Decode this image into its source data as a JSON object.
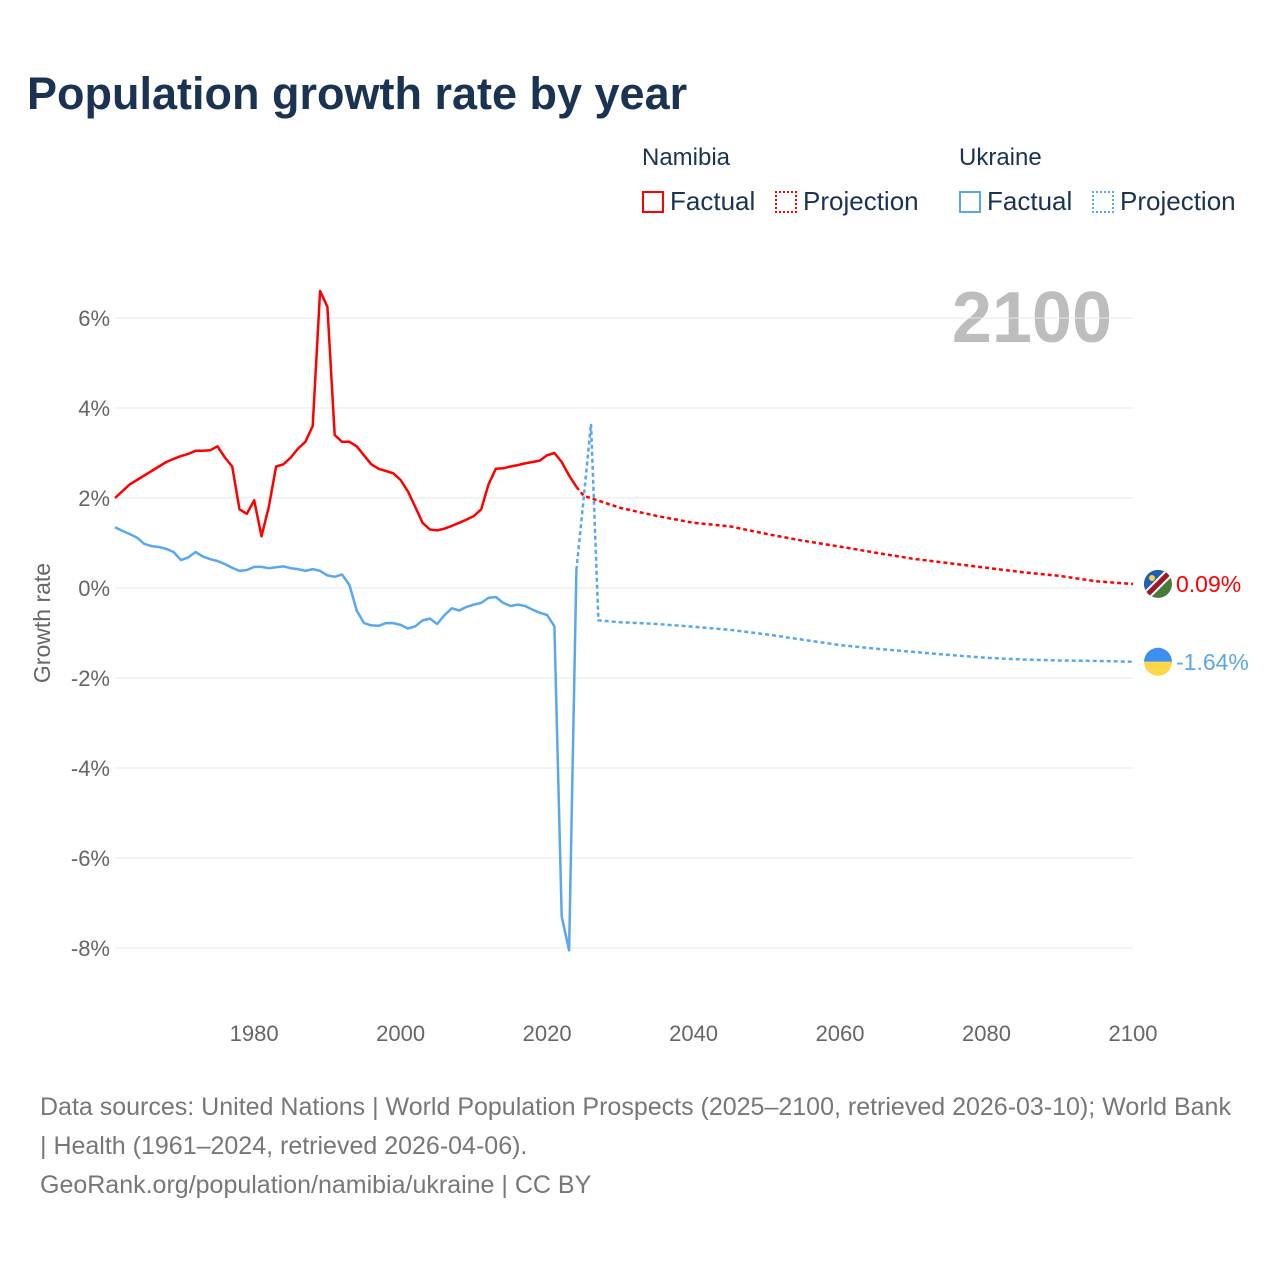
{
  "title": "Population growth rate by year",
  "legend": {
    "groups": [
      {
        "country": "Namibia",
        "factual": "Factual",
        "projection": "Projection",
        "color": "#ff0000"
      },
      {
        "country": "Ukraine",
        "factual": "Factual",
        "projection": "Projection",
        "color": "#5aa7ee"
      }
    ]
  },
  "year_label": "2100",
  "footer": {
    "sources": "Data sources: United Nations | World Population Prospects (2025–2100, retrieved 2026-03-10); World Bank | Health (1961–2024, retrieved 2026-04-06).",
    "credit": "GeoRank.org/population/namibia/ukraine | CC BY"
  },
  "chart_data": {
    "type": "line",
    "title": "Population growth rate by year",
    "xlabel": "",
    "ylabel": "Growth rate",
    "xlim": [
      1961,
      2100
    ],
    "ylim": [
      -9,
      7
    ],
    "xticks": [
      "1980",
      "2000",
      "2020",
      "2040",
      "2060",
      "2080",
      "2100"
    ],
    "yticks": [
      "6%",
      "4%",
      "2%",
      "0%",
      "-2%",
      "-4%",
      "-6%",
      "-8%"
    ],
    "series": [
      {
        "name": "Namibia Factual",
        "color": "#ff0000",
        "dashed": false,
        "x": [
          1961,
          1962,
          1963,
          1964,
          1965,
          1966,
          1967,
          1968,
          1969,
          1970,
          1971,
          1972,
          1973,
          1974,
          1975,
          1976,
          1977,
          1978,
          1979,
          1980,
          1981,
          1982,
          1983,
          1984,
          1985,
          1986,
          1987,
          1988,
          1989,
          1990,
          1991,
          1992,
          1993,
          1994,
          1995,
          1996,
          1997,
          1998,
          1999,
          2000,
          2001,
          2002,
          2003,
          2004,
          2005,
          2006,
          2007,
          2008,
          2009,
          2010,
          2011,
          2012,
          2013,
          2014,
          2015,
          2016,
          2017,
          2018,
          2019,
          2020,
          2021,
          2022,
          2023,
          2024
        ],
        "y": [
          2.0,
          2.15,
          2.3,
          2.4,
          2.5,
          2.6,
          2.7,
          2.8,
          2.87,
          2.93,
          2.98,
          3.05,
          3.05,
          3.06,
          3.15,
          2.9,
          2.7,
          1.75,
          1.65,
          1.95,
          1.15,
          1.8,
          2.7,
          2.75,
          2.9,
          3.1,
          3.25,
          3.6,
          6.6,
          6.25,
          3.4,
          3.25,
          3.25,
          3.15,
          2.95,
          2.75,
          2.65,
          2.6,
          2.55,
          2.4,
          2.15,
          1.8,
          1.45,
          1.3,
          1.28,
          1.32,
          1.38,
          1.45,
          1.52,
          1.6,
          1.75,
          2.3,
          2.65,
          2.66,
          2.7,
          2.73,
          2.77,
          2.8,
          2.83,
          2.95,
          3.0,
          2.8,
          2.5,
          2.25
        ]
      },
      {
        "name": "Namibia Projection",
        "color": "#ff0000",
        "dashed": true,
        "x": [
          2024,
          2025,
          2030,
          2035,
          2040,
          2045,
          2050,
          2055,
          2060,
          2065,
          2070,
          2075,
          2080,
          2085,
          2090,
          2095,
          2100
        ],
        "y": [
          2.25,
          2.05,
          1.78,
          1.6,
          1.45,
          1.37,
          1.2,
          1.05,
          0.92,
          0.78,
          0.65,
          0.55,
          0.45,
          0.35,
          0.27,
          0.15,
          0.09
        ]
      },
      {
        "name": "Ukraine Factual",
        "color": "#5aa7ee",
        "dashed": false,
        "x": [
          1961,
          1962,
          1963,
          1964,
          1965,
          1966,
          1967,
          1968,
          1969,
          1970,
          1971,
          1972,
          1973,
          1974,
          1975,
          1976,
          1977,
          1978,
          1979,
          1980,
          1981,
          1982,
          1983,
          1984,
          1985,
          1986,
          1987,
          1988,
          1989,
          1990,
          1991,
          1992,
          1993,
          1994,
          1995,
          1996,
          1997,
          1998,
          1999,
          2000,
          2001,
          2002,
          2003,
          2004,
          2005,
          2006,
          2007,
          2008,
          2009,
          2010,
          2011,
          2012,
          2013,
          2014,
          2015,
          2016,
          2017,
          2018,
          2019,
          2020,
          2021,
          2022,
          2023,
          2024
        ],
        "y": [
          1.35,
          1.27,
          1.2,
          1.12,
          0.98,
          0.93,
          0.91,
          0.87,
          0.8,
          0.62,
          0.68,
          0.8,
          0.7,
          0.64,
          0.6,
          0.53,
          0.45,
          0.38,
          0.4,
          0.47,
          0.47,
          0.44,
          0.46,
          0.48,
          0.44,
          0.42,
          0.38,
          0.42,
          0.38,
          0.28,
          0.25,
          0.3,
          0.07,
          -0.5,
          -0.78,
          -0.83,
          -0.84,
          -0.78,
          -0.78,
          -0.82,
          -0.9,
          -0.85,
          -0.72,
          -0.68,
          -0.8,
          -0.6,
          -0.45,
          -0.5,
          -0.42,
          -0.37,
          -0.33,
          -0.22,
          -0.2,
          -0.33,
          -0.4,
          -0.37,
          -0.4,
          -0.48,
          -0.55,
          -0.6,
          -0.85,
          -7.3,
          -8.05,
          0.4
        ]
      },
      {
        "name": "Ukraine Projection",
        "color": "#5aa7ee",
        "dashed": true,
        "x": [
          2024,
          2025,
          2026,
          2027,
          2030,
          2035,
          2040,
          2045,
          2050,
          2055,
          2060,
          2065,
          2070,
          2075,
          2080,
          2085,
          2090,
          2095,
          2100
        ],
        "y": [
          0.4,
          2.0,
          3.65,
          -0.72,
          -0.76,
          -0.8,
          -0.86,
          -0.93,
          -1.03,
          -1.15,
          -1.27,
          -1.35,
          -1.42,
          -1.49,
          -1.55,
          -1.59,
          -1.61,
          -1.62,
          -1.64
        ]
      }
    ],
    "end_labels": [
      {
        "country": "Namibia",
        "value": "0.09%",
        "color": "#ff0000"
      },
      {
        "country": "Ukraine",
        "value": "-1.64%",
        "color": "#5aa7ee"
      }
    ],
    "grid": true
  }
}
